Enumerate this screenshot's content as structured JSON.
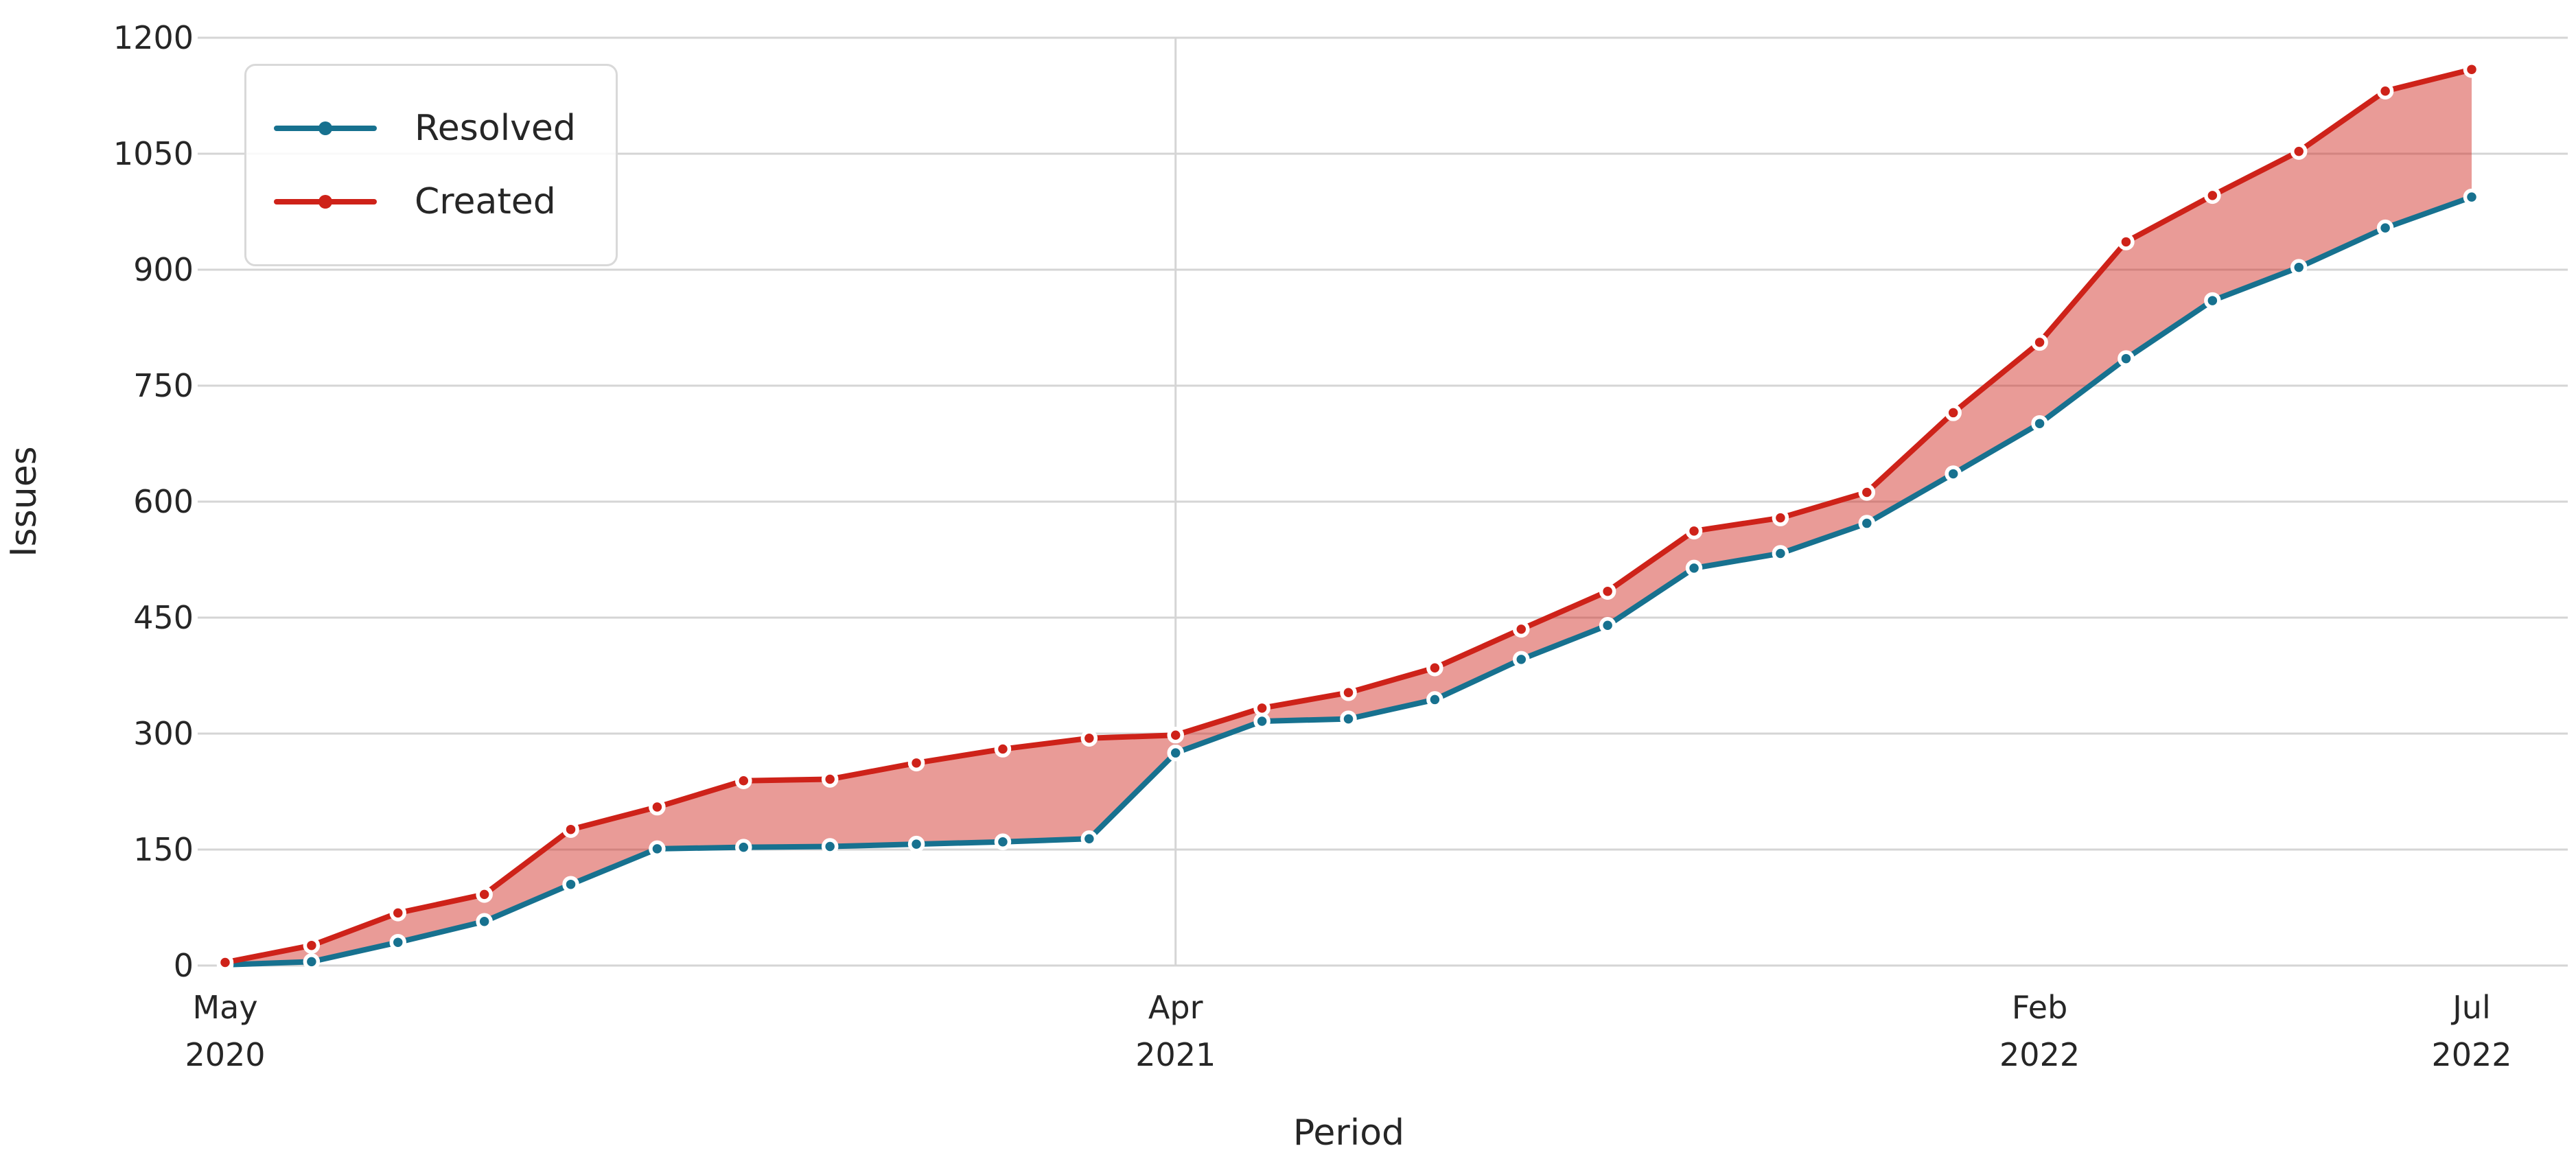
{
  "chart_data": {
    "type": "line",
    "title": "",
    "xlabel": "Period",
    "ylabel": "Issues",
    "grid": "horizontal gridlines at every y tick; one vertical gridline at Apr 2021",
    "legend_position": "upper left",
    "background_color": "#ffffff",
    "gridline_color": "#d5d5d5",
    "text_color": "#262626",
    "ylim": [
      0,
      1200
    ],
    "y_ticks": [
      0,
      150,
      300,
      450,
      600,
      750,
      900,
      1050,
      1200
    ],
    "x_tick_labels": [
      {
        "month": "May",
        "year": "2020",
        "index": 0
      },
      {
        "month": "Apr",
        "year": "2021",
        "index": 11
      },
      {
        "month": "Feb",
        "year": "2022",
        "index": 21
      },
      {
        "month": "Jul",
        "year": "2022",
        "index": 26
      }
    ],
    "x_gridline_indices": [
      11
    ],
    "categories": [
      "2020-05",
      "2020-06",
      "2020-07",
      "2020-08",
      "2020-09",
      "2020-10",
      "2020-11",
      "2020-12",
      "2021-01",
      "2021-02",
      "2021-03",
      "2021-04",
      "2021-05",
      "2021-06",
      "2021-07",
      "2021-08",
      "2021-09",
      "2021-10",
      "2021-11",
      "2021-12",
      "2022-01",
      "2022-02",
      "2022-03",
      "2022-04",
      "2022-05",
      "2022-06",
      "2022-07"
    ],
    "series": [
      {
        "name": "Resolved",
        "color": "#17718F",
        "marker": "circle-with-white-edge",
        "values": [
          1,
          5,
          30,
          57,
          105,
          151,
          153,
          154,
          157,
          160,
          164,
          275,
          316,
          319,
          344,
          396,
          440,
          514,
          533,
          572,
          636,
          701,
          785,
          860,
          903,
          954,
          994
        ]
      },
      {
        "name": "Created",
        "color": "#CE2219",
        "marker": "circle-with-white-edge",
        "values": [
          4,
          26,
          68,
          92,
          176,
          205,
          239,
          241,
          262,
          280,
          294,
          298,
          333,
          353,
          385,
          435,
          484,
          562,
          579,
          612,
          715,
          806,
          936,
          996,
          1053,
          1131,
          1159
        ]
      }
    ],
    "fill_between": {
      "between": [
        "Resolved",
        "Created"
      ],
      "color": "#CE2219",
      "opacity": 0.45
    }
  },
  "layout_note": "area band between Created (top, red) and Resolved (bottom, blue) cumulative issue curves"
}
